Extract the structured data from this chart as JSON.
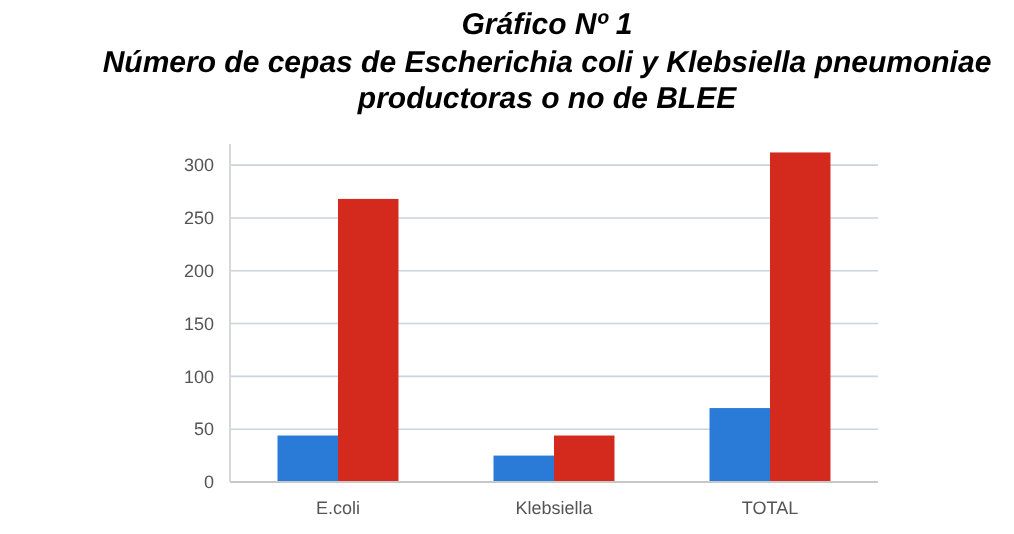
{
  "chart_data": {
    "type": "bar",
    "title": "Gráfico Nº 1",
    "subtitle": "Número de cepas de Escherichia coli y Klebsiella pneumoniae productoras o no de BLEE",
    "categories": [
      "E.coli",
      "Klebsiella",
      "TOTAL"
    ],
    "series": [
      {
        "color": "#2a7bd8",
        "values": [
          44,
          25,
          70
        ]
      },
      {
        "color": "#d42a1e",
        "values": [
          268,
          44,
          312
        ]
      }
    ],
    "ylim": [
      0,
      320
    ],
    "yticks": [
      0,
      50,
      100,
      150,
      200,
      250,
      300
    ],
    "grid": "y"
  }
}
